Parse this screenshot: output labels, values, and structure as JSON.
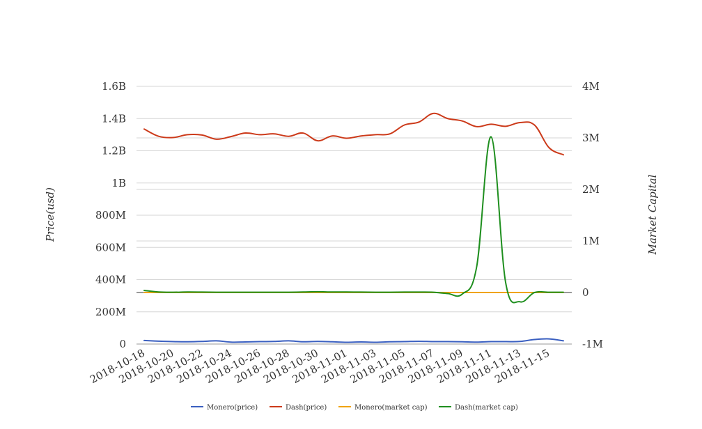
{
  "chart_data": {
    "type": "line",
    "ylabel": "Price(usd)",
    "y2label": "Market Capital",
    "ylim": [
      0,
      1600000000
    ],
    "y2lim": [
      -1000000,
      4000000
    ],
    "yticks": [
      "0",
      "200M",
      "400M",
      "600M",
      "800M",
      "1B",
      "1.2B",
      "1.4B",
      "1.6B"
    ],
    "y2ticks": [
      "-1M",
      "0",
      "1M",
      "2M",
      "3M",
      "4M"
    ],
    "x": [
      "2018-10-18",
      "2018-10-19",
      "2018-10-20",
      "2018-10-21",
      "2018-10-22",
      "2018-10-23",
      "2018-10-24",
      "2018-10-25",
      "2018-10-26",
      "2018-10-27",
      "2018-10-28",
      "2018-10-29",
      "2018-10-30",
      "2018-10-31",
      "2018-11-01",
      "2018-11-02",
      "2018-11-03",
      "2018-11-04",
      "2018-11-05",
      "2018-11-06",
      "2018-11-07",
      "2018-11-08",
      "2018-11-09",
      "2018-11-10",
      "2018-11-11",
      "2018-11-12",
      "2018-11-13",
      "2018-11-14",
      "2018-11-15",
      "2018-11-16"
    ],
    "xtick_labels": [
      "2018-10-18",
      "2018-10-20",
      "2018-10-22",
      "2018-10-24",
      "2018-10-26",
      "2018-10-28",
      "2018-10-30",
      "2018-11-01",
      "2018-11-03",
      "2018-11-05",
      "2018-11-07",
      "2018-11-09",
      "2018-11-11",
      "2018-11-13",
      "2018-11-15"
    ],
    "legend_position": "bottom",
    "grid": true,
    "series": [
      {
        "name": "Monero(price)",
        "axis": "left",
        "color": "#3a5fc0",
        "values": [
          22000000,
          18000000,
          15000000,
          14000000,
          16000000,
          20000000,
          12000000,
          13000000,
          15000000,
          16000000,
          20000000,
          14000000,
          16000000,
          14000000,
          11000000,
          13000000,
          11000000,
          14000000,
          15000000,
          17000000,
          15000000,
          15000000,
          14000000,
          12000000,
          15000000,
          15000000,
          16000000,
          28000000,
          32000000,
          20000000
        ]
      },
      {
        "name": "Dash(price)",
        "axis": "left",
        "color": "#cc3a1a",
        "values": [
          1335000000,
          1290000000,
          1282000000,
          1300000000,
          1298000000,
          1272000000,
          1288000000,
          1310000000,
          1300000000,
          1305000000,
          1290000000,
          1310000000,
          1262000000,
          1292000000,
          1278000000,
          1292000000,
          1300000000,
          1305000000,
          1360000000,
          1378000000,
          1432000000,
          1400000000,
          1385000000,
          1350000000,
          1365000000,
          1352000000,
          1375000000,
          1360000000,
          1220000000,
          1175000000
        ]
      },
      {
        "name": "Monero(market cap)",
        "axis": "right",
        "color": "#f0a30a",
        "values": [
          0,
          0,
          0,
          0,
          0,
          0,
          0,
          0,
          0,
          0,
          0,
          0,
          0,
          0,
          0,
          0,
          0,
          0,
          0,
          0,
          0,
          0,
          0,
          0,
          0,
          0,
          0,
          0,
          0,
          0
        ]
      },
      {
        "name": "Dash(market cap)",
        "axis": "right",
        "color": "#1f8f1f",
        "values": [
          40000,
          10000,
          5000,
          10000,
          8000,
          5000,
          5000,
          5000,
          5000,
          5000,
          5000,
          10000,
          15000,
          10000,
          10000,
          8000,
          5000,
          5000,
          8000,
          8000,
          5000,
          -20000,
          -30000,
          500000,
          3020000,
          200000,
          -180000,
          0,
          5000,
          5000
        ]
      }
    ]
  }
}
